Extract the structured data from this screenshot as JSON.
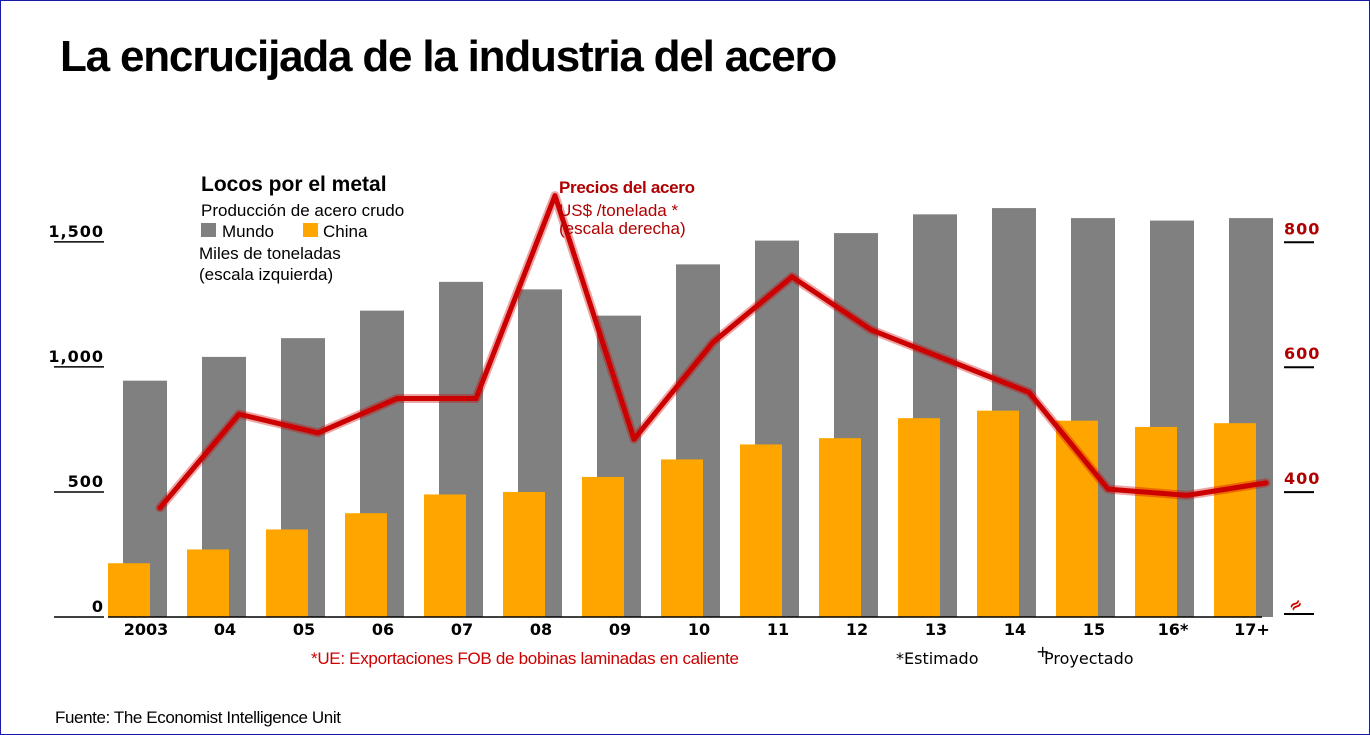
{
  "title": "La encrucijada de la industria del acero",
  "legend": {
    "heading": "Locos por el metal",
    "subtitle": "Producción de acero crudo",
    "world_label": "Mundo",
    "china_label": "China",
    "units": "Miles de toneladas",
    "scale_note": "(escala izquierda)"
  },
  "price_label": {
    "title": "Precios del acero",
    "units": "US$ /tonelada *",
    "scale_note": "(escala derecha)"
  },
  "footnotes": {
    "eu": "*UE: Exportaciones FOB de bobinas laminadas en caliente",
    "estimated": "*Estimado",
    "projected_mark": "+",
    "projected": "Proyectado"
  },
  "source": "Fuente: The Economist Intelligence Unit",
  "colors": {
    "world": "#808080",
    "china": "#ffa500",
    "price": "#cc0000",
    "axis_right": "#b00000"
  },
  "chart_data": {
    "type": "bar+line",
    "categories": [
      "2003",
      "04",
      "05",
      "06",
      "07",
      "08",
      "09",
      "10",
      "11",
      "12",
      "13",
      "14",
      "15",
      "16*",
      "17+"
    ],
    "series": [
      {
        "name": "Mundo",
        "axis": "left",
        "values": [
          945,
          1040,
          1115,
          1225,
          1340,
          1310,
          1205,
          1410,
          1505,
          1535,
          1610,
          1635,
          1595,
          1585,
          1595
        ]
      },
      {
        "name": "China",
        "axis": "left",
        "values": [
          215,
          270,
          350,
          415,
          490,
          500,
          560,
          630,
          690,
          715,
          795,
          825,
          785,
          760,
          775
        ]
      },
      {
        "name": "Precios del acero",
        "axis": "right",
        "type": "line",
        "values": [
          370,
          520,
          490,
          545,
          545,
          870,
          480,
          635,
          740,
          655,
          605,
          555,
          400,
          390,
          410
        ]
      }
    ],
    "left_axis": {
      "ticks": [
        0,
        500,
        1000,
        1500
      ],
      "tick_labels": [
        "0",
        "500",
        "1,000",
        "1,500"
      ],
      "ylim": [
        0,
        1600
      ]
    },
    "right_axis": {
      "ticks": [
        400,
        600,
        800
      ],
      "tick_labels": [
        "400",
        "600",
        "800"
      ],
      "ylim": [
        200,
        880
      ],
      "break_mark": "≈"
    }
  }
}
